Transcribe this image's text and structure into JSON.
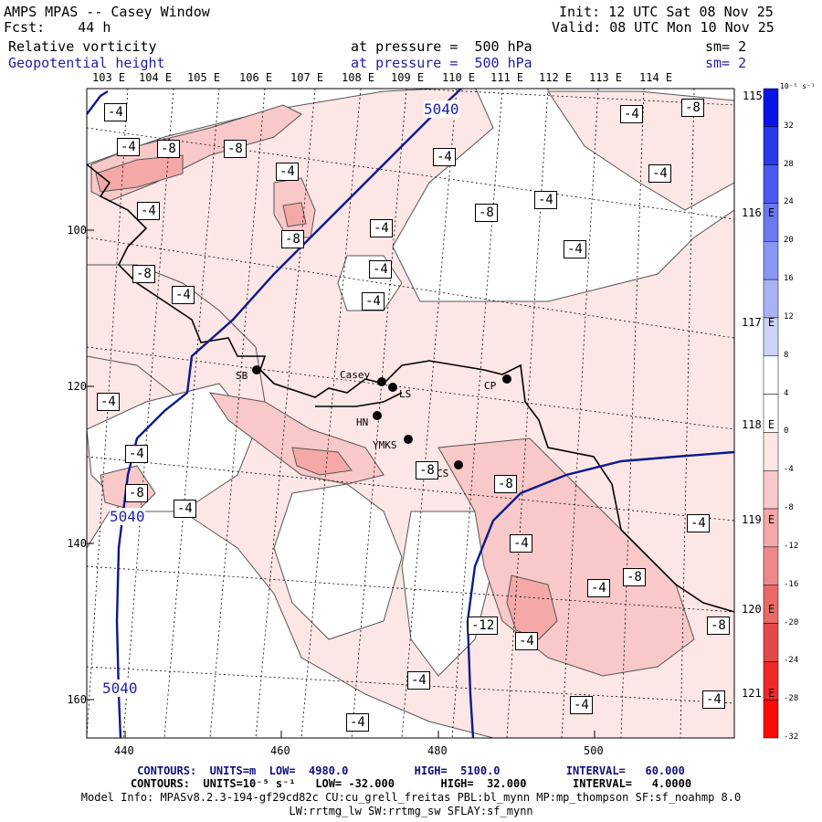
{
  "header": {
    "title": "AMPS MPAS -- Casey Window",
    "fcst": "Fcst:    44 h",
    "init": "Init: 12 UTC Sat 08 Nov 25",
    "valid": "Valid: 08 UTC Mon 10 Nov 25",
    "field1": "Relative vorticity",
    "field1_level": "at pressure =  500 hPa",
    "field1_sm": "sm= 2",
    "field2": "Geopotential height",
    "field2_level": "at pressure =  500 hPa",
    "field2_sm": "sm= 2"
  },
  "longitudes": [
    "103 E",
    "104 E",
    "105 E",
    "106 E",
    "107 E",
    "108 E",
    "109 E",
    "110 E",
    "111 E",
    "112 E",
    "113 E",
    "114 E",
    "115 E"
  ],
  "latitudes": [
    "116 E",
    "117 E",
    "118 E",
    "119 E",
    "120 E",
    "121 E"
  ],
  "y_ticks": [
    "100",
    "120",
    "140",
    "160"
  ],
  "x_ticks": [
    "440",
    "460",
    "480",
    "500"
  ],
  "colorbar": {
    "unit": "10⁻⁵ s⁻¹",
    "levels": [
      "32",
      "28",
      "24",
      "20",
      "16",
      "12",
      "8",
      "4",
      "0",
      "-4",
      "-8",
      "-12",
      "-16",
      "-20",
      "-24",
      "-28",
      "-32"
    ],
    "colors": [
      "#0a14e6",
      "#2a38ec",
      "#4a5af0",
      "#6a78f2",
      "#8a96f4",
      "#aab2f6",
      "#ccd2f8",
      "#ffffff",
      "#ffffff",
      "#fde6e6",
      "#f9c8c8",
      "#f4a8a8",
      "#ef8888",
      "#ea6868",
      "#e54848",
      "#f02828",
      "#ff0a0a"
    ]
  },
  "stations": [
    {
      "name": "SB"
    },
    {
      "name": "Casey"
    },
    {
      "name": "LS"
    },
    {
      "name": "HN"
    },
    {
      "name": "YMKS"
    },
    {
      "name": "CS"
    },
    {
      "name": "CP"
    }
  ],
  "height_labels": [
    "5040",
    "5040",
    "5040"
  ],
  "vort_labels": [
    "-4",
    "-4",
    "-8",
    "-8",
    "-4",
    "-4",
    "-8",
    "-4",
    "-4",
    "-4",
    "-8",
    "-4",
    "-8",
    "-4",
    "-4",
    "-8",
    "-4",
    "-4",
    "-4",
    "-4",
    "-4",
    "-8",
    "-4",
    "-8",
    "-8",
    "-4",
    "-8",
    "-4",
    "-12",
    "-4",
    "-4",
    "-8",
    "-4",
    "-4",
    "-4",
    "-4"
  ],
  "footer": {
    "line1": "CONTOURS:  UNITS=m  LOW=  4980.0          HIGH=  5100.0          INTERVAL=   60.000",
    "line2": "CONTOURS:  UNITS=10⁻⁵ s⁻¹   LOW= -32.000       HIGH=  32.000       INTERVAL=   4.0000",
    "line3": "Model Info: MPASv8.2.3-194-gf29cd82c CU:cu_grell_freitas PBL:bl_mynn MP:mp_thompson SF:sf_noahmp 8.0",
    "line4": "LW:rrtmg_lw SW:rrtmg_sw SFLAY:sf_mynn"
  },
  "colors": {
    "height_contour": "#0a1a8c",
    "coast": "#000000",
    "positive_fill": "#fde6e6"
  }
}
